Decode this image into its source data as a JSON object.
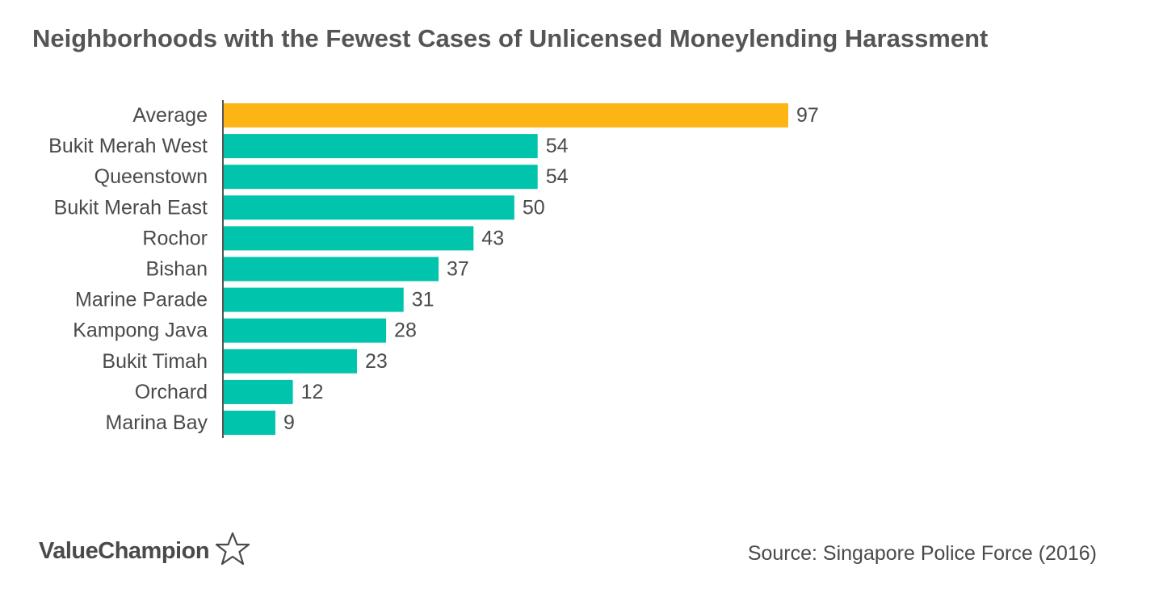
{
  "title": "Neighborhoods with the Fewest Cases of Unlicensed Moneylending Harassment",
  "source": "Source: Singapore Police Force (2016)",
  "logo": {
    "text": "ValueChampion",
    "icon": "star-outline-icon"
  },
  "colors": {
    "highlight": "#FDB515",
    "bar": "#00C4AC",
    "text": "#4A4A4A",
    "axis": "#555555"
  },
  "chart_data": {
    "type": "bar",
    "orientation": "horizontal",
    "categories": [
      "Average",
      "Bukit Merah West",
      "Queenstown",
      "Bukit Merah East",
      "Rochor",
      "Bishan",
      "Marine Parade",
      "Kampong Java",
      "Bukit Timah",
      "Orchard",
      "Marina Bay"
    ],
    "values": [
      97,
      54,
      54,
      50,
      43,
      37,
      31,
      28,
      23,
      12,
      9
    ],
    "data_labels": [
      "97",
      "54",
      "54",
      "50",
      "43",
      "37",
      "31",
      "28",
      "23",
      "12",
      "9"
    ],
    "highlight_category": "Average",
    "xlim": [
      0,
      97
    ],
    "grid": false,
    "legend": false
  }
}
